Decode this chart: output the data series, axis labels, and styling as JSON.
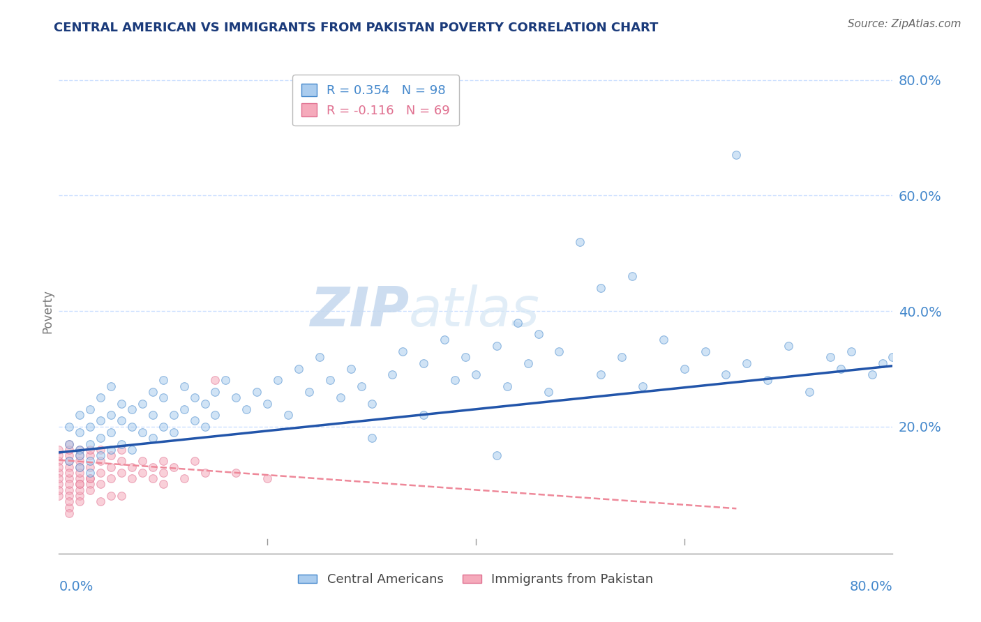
{
  "title": "CENTRAL AMERICAN VS IMMIGRANTS FROM PAKISTAN POVERTY CORRELATION CHART",
  "source": "Source: ZipAtlas.com",
  "ylabel": "Poverty",
  "xlim": [
    0.0,
    0.8
  ],
  "ylim": [
    -0.02,
    0.82
  ],
  "right_yticks": [
    0.0,
    0.2,
    0.4,
    0.6,
    0.8
  ],
  "right_yticklabels": [
    "",
    "20.0%",
    "40.0%",
    "60.0%",
    "80.0%"
  ],
  "legend_r1": "R = 0.354   N = 98",
  "legend_r2": "R = -0.116   N = 69",
  "blue_scatter_x": [
    0.01,
    0.01,
    0.01,
    0.02,
    0.02,
    0.02,
    0.02,
    0.02,
    0.03,
    0.03,
    0.03,
    0.03,
    0.03,
    0.04,
    0.04,
    0.04,
    0.04,
    0.05,
    0.05,
    0.05,
    0.05,
    0.06,
    0.06,
    0.06,
    0.07,
    0.07,
    0.07,
    0.08,
    0.08,
    0.09,
    0.09,
    0.09,
    0.1,
    0.1,
    0.1,
    0.11,
    0.11,
    0.12,
    0.12,
    0.13,
    0.13,
    0.14,
    0.14,
    0.15,
    0.15,
    0.16,
    0.17,
    0.18,
    0.19,
    0.2,
    0.21,
    0.22,
    0.23,
    0.24,
    0.25,
    0.26,
    0.27,
    0.28,
    0.29,
    0.3,
    0.32,
    0.33,
    0.35,
    0.37,
    0.38,
    0.39,
    0.4,
    0.42,
    0.43,
    0.44,
    0.45,
    0.46,
    0.47,
    0.48,
    0.5,
    0.52,
    0.52,
    0.54,
    0.56,
    0.58,
    0.6,
    0.62,
    0.64,
    0.65,
    0.66,
    0.68,
    0.7,
    0.72,
    0.74,
    0.75,
    0.76,
    0.78,
    0.79,
    0.8,
    0.55,
    0.42,
    0.35,
    0.3
  ],
  "blue_scatter_y": [
    0.14,
    0.17,
    0.2,
    0.13,
    0.16,
    0.19,
    0.22,
    0.15,
    0.14,
    0.17,
    0.2,
    0.23,
    0.12,
    0.15,
    0.18,
    0.21,
    0.25,
    0.16,
    0.19,
    0.22,
    0.27,
    0.17,
    0.21,
    0.24,
    0.16,
    0.2,
    0.23,
    0.19,
    0.24,
    0.18,
    0.22,
    0.26,
    0.2,
    0.25,
    0.28,
    0.22,
    0.19,
    0.23,
    0.27,
    0.21,
    0.25,
    0.24,
    0.2,
    0.26,
    0.22,
    0.28,
    0.25,
    0.23,
    0.26,
    0.24,
    0.28,
    0.22,
    0.3,
    0.26,
    0.32,
    0.28,
    0.25,
    0.3,
    0.27,
    0.24,
    0.29,
    0.33,
    0.31,
    0.35,
    0.28,
    0.32,
    0.29,
    0.34,
    0.27,
    0.38,
    0.31,
    0.36,
    0.26,
    0.33,
    0.52,
    0.29,
    0.44,
    0.32,
    0.27,
    0.35,
    0.3,
    0.33,
    0.29,
    0.67,
    0.31,
    0.28,
    0.34,
    0.26,
    0.32,
    0.3,
    0.33,
    0.29,
    0.31,
    0.32,
    0.46,
    0.15,
    0.22,
    0.18
  ],
  "pink_scatter_x": [
    0.0,
    0.0,
    0.0,
    0.0,
    0.0,
    0.0,
    0.0,
    0.0,
    0.01,
    0.01,
    0.01,
    0.01,
    0.01,
    0.01,
    0.01,
    0.01,
    0.01,
    0.02,
    0.02,
    0.02,
    0.02,
    0.02,
    0.02,
    0.02,
    0.02,
    0.03,
    0.03,
    0.03,
    0.03,
    0.03,
    0.04,
    0.04,
    0.04,
    0.04,
    0.05,
    0.05,
    0.05,
    0.06,
    0.06,
    0.06,
    0.07,
    0.07,
    0.08,
    0.08,
    0.09,
    0.09,
    0.1,
    0.1,
    0.11,
    0.12,
    0.13,
    0.14,
    0.15,
    0.17,
    0.2,
    0.1,
    0.04,
    0.05,
    0.02,
    0.01,
    0.03,
    0.02,
    0.01,
    0.06,
    0.02,
    0.01,
    0.03,
    0.0,
    0.01
  ],
  "pink_scatter_y": [
    0.12,
    0.14,
    0.1,
    0.16,
    0.13,
    0.08,
    0.15,
    0.11,
    0.13,
    0.15,
    0.11,
    0.17,
    0.09,
    0.14,
    0.12,
    0.1,
    0.16,
    0.13,
    0.15,
    0.11,
    0.16,
    0.1,
    0.14,
    0.12,
    0.08,
    0.13,
    0.15,
    0.11,
    0.16,
    0.1,
    0.14,
    0.12,
    0.16,
    0.1,
    0.13,
    0.15,
    0.11,
    0.14,
    0.12,
    0.16,
    0.13,
    0.11,
    0.14,
    0.12,
    0.13,
    0.11,
    0.14,
    0.12,
    0.13,
    0.11,
    0.14,
    0.12,
    0.28,
    0.12,
    0.11,
    0.1,
    0.07,
    0.08,
    0.09,
    0.06,
    0.09,
    0.07,
    0.05,
    0.08,
    0.1,
    0.08,
    0.11,
    0.09,
    0.07
  ],
  "blue_trend_x0": 0.0,
  "blue_trend_x1": 0.8,
  "blue_trend_y0": 0.155,
  "blue_trend_y1": 0.305,
  "pink_trend_x0": 0.0,
  "pink_trend_x1": 0.65,
  "pink_trend_y0": 0.142,
  "pink_trend_y1": 0.058,
  "watermark_zip": "ZIP",
  "watermark_atlas": "atlas",
  "scatter_size": 70,
  "scatter_alpha": 0.55,
  "blue_fill": "#aaccee",
  "pink_fill": "#f5aabb",
  "blue_edge": "#4488cc",
  "pink_edge": "#e07090",
  "blue_line": "#2255aa",
  "pink_line": "#ee8899",
  "title_color": "#1a3a7a",
  "axis_label_color": "#4488cc",
  "grid_color": "#cce0ff",
  "bg_color": "#ffffff",
  "source_color": "#666666"
}
